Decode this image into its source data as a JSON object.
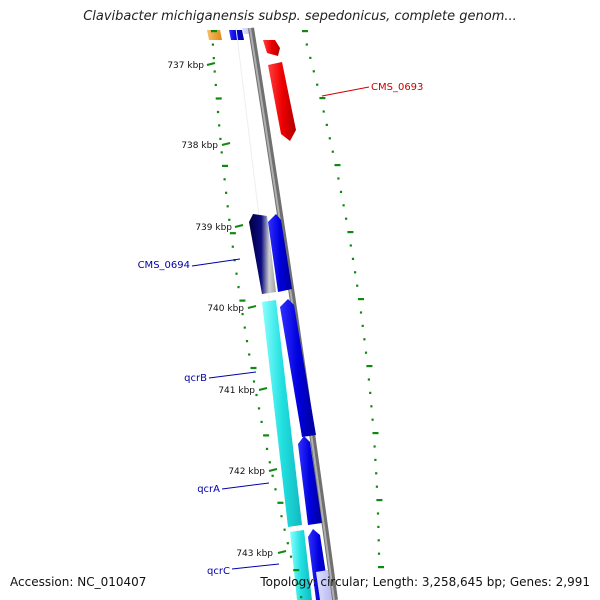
{
  "title": "Clavibacter michiganensis subsp. sepedonicus, complete genom...",
  "footer": {
    "accession": "Accession: NC_010407",
    "summary": "Topology: circular; Length: 3,258,645 bp; Genes: 2,991"
  },
  "scale_ticks": [
    "737 kbp",
    "738 kbp",
    "739 kbp",
    "740 kbp",
    "741 kbp",
    "742 kbp",
    "743 kbp"
  ],
  "gene_labels": [
    {
      "text": "CMS_0693",
      "color": "#cc0000"
    },
    {
      "text": "CMS_0694",
      "color": "#0000aa"
    },
    {
      "text": "qcrB",
      "color": "#0000aa"
    },
    {
      "text": "qcrA",
      "color": "#0000aa"
    },
    {
      "text": "qcrC",
      "color": "#0000aa"
    }
  ],
  "colors": {
    "backbone": "#8c8c8c",
    "forward_cds": "#1010e0",
    "reverse_cds": "#ee1111",
    "reverse_cds_cyan": "#22dddd",
    "reverse_cds_navy": "#0a0a70",
    "tick_green": "#118811",
    "upstream_orange": "#f0a030"
  }
}
